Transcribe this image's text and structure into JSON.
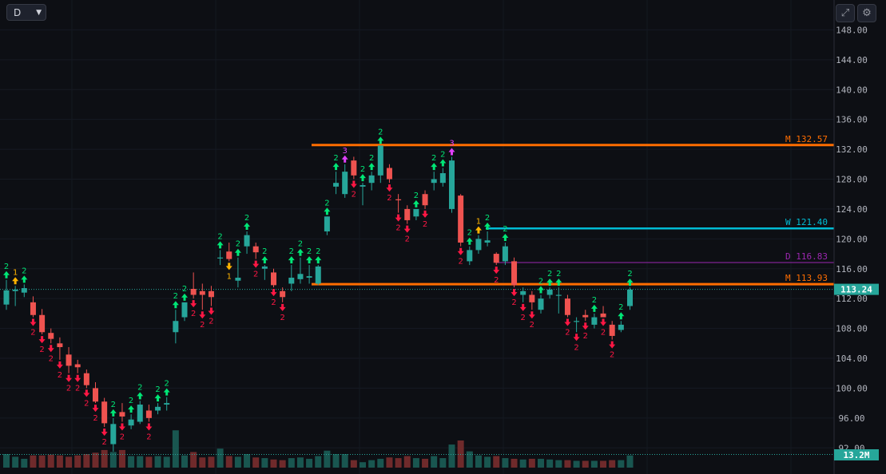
{
  "toolbar": {
    "timeframe": "D",
    "expand_icon": "expand-icon",
    "settings_icon": "gear-icon"
  },
  "colors": {
    "up": "#26a69a",
    "down": "#ef5350",
    "signal_green": "#00e676",
    "signal_red": "#ff1744",
    "signal_yellow": "#ffb300",
    "signal_magenta": "#e040fb",
    "monthly": "#ff6d00",
    "weekly": "#00bcd4",
    "daily": "#9c27b0"
  },
  "chart_data": {
    "type": "candlestick",
    "yaxis": {
      "ticks": [
        "148.00",
        "144.00",
        "140.00",
        "136.00",
        "132.00",
        "128.00",
        "124.00",
        "120.00",
        "116.00",
        "112.00",
        "108.00",
        "104.00",
        "100.00",
        "96.00",
        "92.00"
      ],
      "range": [
        88.5,
        152
      ]
    },
    "price_label": "113.24",
    "volume_label": "13.2M",
    "levels": [
      {
        "label": "M 132.57",
        "value": 132.57,
        "color": "#ff6d00"
      },
      {
        "label": "W 121.40",
        "value": 121.4,
        "color": "#00bcd4"
      },
      {
        "label": "D 116.83",
        "value": 116.83,
        "color": "#9c27b0"
      },
      {
        "label": "M 113.93",
        "value": 113.93,
        "color": "#ff6d00"
      }
    ],
    "candles": [
      {
        "o": 111.2,
        "h": 114.5,
        "l": 110.5,
        "c": 113.1,
        "v": 2.0,
        "s": "u",
        "n": "2"
      },
      {
        "o": 113.0,
        "h": 113.7,
        "l": 111.0,
        "c": 113.2,
        "v": 1.6,
        "s": "u",
        "n": "1"
      },
      {
        "o": 112.8,
        "h": 113.9,
        "l": 112.2,
        "c": 113.4,
        "v": 1.3,
        "s": "u",
        "n": "2"
      },
      {
        "o": 111.5,
        "h": 112.3,
        "l": 109.5,
        "c": 109.8,
        "v": 1.8,
        "s": "d",
        "n": "2"
      },
      {
        "o": 109.8,
        "h": 110.6,
        "l": 107.2,
        "c": 107.5,
        "v": 1.8,
        "s": "d",
        "n": "2"
      },
      {
        "o": 107.4,
        "h": 108.0,
        "l": 106.0,
        "c": 106.6,
        "v": 1.9,
        "s": "d",
        "n": "2"
      },
      {
        "o": 106.0,
        "h": 106.8,
        "l": 103.8,
        "c": 105.5,
        "v": 1.8,
        "s": "d",
        "n": "2"
      },
      {
        "o": 104.5,
        "h": 105.5,
        "l": 102.0,
        "c": 103.0,
        "v": 1.6,
        "s": "d",
        "n": "2"
      },
      {
        "o": 103.2,
        "h": 103.8,
        "l": 102.0,
        "c": 102.8,
        "v": 1.8,
        "s": "d",
        "n": "2"
      },
      {
        "o": 102.0,
        "h": 102.5,
        "l": 100.0,
        "c": 100.4,
        "v": 2.0,
        "s": "d",
        "n": "2"
      },
      {
        "o": 100.0,
        "h": 100.8,
        "l": 98.0,
        "c": 98.2,
        "v": 2.2,
        "s": "d",
        "n": "2"
      },
      {
        "o": 98.2,
        "h": 98.7,
        "l": 94.8,
        "c": 95.3,
        "v": 2.6,
        "s": "d",
        "n": "2"
      },
      {
        "o": 92.5,
        "h": 96.0,
        "l": 91.5,
        "c": 95.2,
        "v": 2.3,
        "s": "u",
        "n": "2"
      },
      {
        "o": 96.8,
        "h": 98.0,
        "l": 95.5,
        "c": 96.2,
        "v": 2.6,
        "s": "d",
        "n": "2"
      },
      {
        "o": 95.0,
        "h": 96.5,
        "l": 94.5,
        "c": 95.8,
        "v": 1.7,
        "s": "u",
        "n": "2"
      },
      {
        "o": 95.5,
        "h": 98.3,
        "l": 95.2,
        "c": 97.8,
        "v": 1.7,
        "s": "u",
        "n": "2"
      },
      {
        "o": 97.0,
        "h": 97.8,
        "l": 95.5,
        "c": 96.0,
        "v": 1.6,
        "s": "d",
        "n": "2"
      },
      {
        "o": 97.0,
        "h": 98.0,
        "l": 96.5,
        "c": 97.5,
        "v": 1.7,
        "s": "u",
        "n": "2"
      },
      {
        "o": 97.8,
        "h": 98.8,
        "l": 97.0,
        "c": 98.0,
        "v": 1.6,
        "s": "u",
        "n": "2"
      },
      {
        "o": 107.5,
        "h": 110.5,
        "l": 106.0,
        "c": 109.0,
        "v": 5.5,
        "s": "u",
        "n": "2"
      },
      {
        "o": 109.5,
        "h": 111.5,
        "l": 109.0,
        "c": 111.5,
        "v": 1.8,
        "s": "u",
        "n": "2"
      },
      {
        "o": 113.3,
        "h": 115.5,
        "l": 112.0,
        "c": 112.5,
        "v": 2.3,
        "s": "d",
        "n": "2"
      },
      {
        "o": 113.0,
        "h": 114.0,
        "l": 110.5,
        "c": 112.5,
        "v": 1.5,
        "s": "d",
        "n": "2"
      },
      {
        "o": 113.0,
        "h": 113.7,
        "l": 111.0,
        "c": 112.2,
        "v": 1.6,
        "s": "d",
        "n": "2"
      },
      {
        "o": 117.5,
        "h": 118.5,
        "l": 116.5,
        "c": 117.5,
        "v": 2.8,
        "s": "u",
        "n": "2"
      },
      {
        "o": 118.3,
        "h": 119.5,
        "l": 117.0,
        "c": 117.3,
        "v": 1.7,
        "s": "d",
        "n": "1"
      },
      {
        "o": 114.4,
        "h": 117.5,
        "l": 113.5,
        "c": 114.8,
        "v": 1.6,
        "s": "u",
        "n": "2"
      },
      {
        "o": 119.0,
        "h": 121.0,
        "l": 118.0,
        "c": 120.5,
        "v": 2.0,
        "s": "u",
        "n": "2"
      },
      {
        "o": 119.0,
        "h": 119.5,
        "l": 117.3,
        "c": 118.2,
        "v": 1.5,
        "s": "d",
        "n": "2"
      },
      {
        "o": 116.0,
        "h": 116.5,
        "l": 114.5,
        "c": 116.3,
        "v": 1.4,
        "s": "u",
        "n": "2"
      },
      {
        "o": 115.5,
        "h": 116.0,
        "l": 113.5,
        "c": 113.8,
        "v": 1.2,
        "s": "d",
        "n": "2"
      },
      {
        "o": 113.0,
        "h": 113.5,
        "l": 111.5,
        "c": 112.2,
        "v": 1.1,
        "s": "d",
        "n": "2"
      },
      {
        "o": 114.0,
        "h": 116.5,
        "l": 113.0,
        "c": 114.8,
        "v": 1.4,
        "s": "u",
        "n": "2"
      },
      {
        "o": 114.6,
        "h": 117.5,
        "l": 114.0,
        "c": 115.3,
        "v": 1.5,
        "s": "u",
        "n": "2"
      },
      {
        "o": 114.8,
        "h": 116.5,
        "l": 114.0,
        "c": 115.0,
        "v": 1.3,
        "s": "u",
        "n": "2"
      },
      {
        "o": 114.0,
        "h": 116.5,
        "l": 113.8,
        "c": 116.3,
        "v": 1.7,
        "s": "u",
        "n": "2"
      },
      {
        "o": 121.0,
        "h": 123.0,
        "l": 120.5,
        "c": 123.0,
        "v": 2.5,
        "s": "u",
        "n": "2"
      },
      {
        "o": 127.0,
        "h": 129.0,
        "l": 126.0,
        "c": 127.5,
        "v": 2.0,
        "s": "u",
        "n": "2"
      },
      {
        "o": 126.0,
        "h": 130.0,
        "l": 125.5,
        "c": 129.0,
        "v": 2.0,
        "s": "u",
        "n": "3"
      },
      {
        "o": 130.5,
        "h": 131.0,
        "l": 128.0,
        "c": 128.5,
        "v": 1.1,
        "s": "d",
        "n": "2"
      },
      {
        "o": 127.0,
        "h": 127.5,
        "l": 124.5,
        "c": 127.2,
        "v": 0.8,
        "s": "u",
        "n": "2"
      },
      {
        "o": 127.5,
        "h": 129.0,
        "l": 126.5,
        "c": 128.5,
        "v": 1.1,
        "s": "u",
        "n": "2"
      },
      {
        "o": 128.5,
        "h": 132.5,
        "l": 127.5,
        "c": 132.5,
        "v": 1.3,
        "s": "u",
        "n": "2"
      },
      {
        "o": 129.5,
        "h": 130.0,
        "l": 127.5,
        "c": 128.0,
        "v": 1.5,
        "s": "d",
        "n": "2"
      },
      {
        "o": 125.3,
        "h": 126.0,
        "l": 123.5,
        "c": 125.2,
        "v": 1.4,
        "s": "d",
        "n": "2"
      },
      {
        "o": 124.0,
        "h": 124.5,
        "l": 122.0,
        "c": 122.5,
        "v": 1.7,
        "s": "d",
        "n": "2"
      },
      {
        "o": 123.0,
        "h": 124.0,
        "l": 122.5,
        "c": 124.0,
        "v": 1.4,
        "s": "u",
        "n": "2"
      },
      {
        "o": 126.0,
        "h": 126.5,
        "l": 124.0,
        "c": 124.5,
        "v": 1.3,
        "s": "d",
        "n": "2"
      },
      {
        "o": 127.5,
        "h": 129.0,
        "l": 126.5,
        "c": 128.0,
        "v": 1.7,
        "s": "u",
        "n": "2"
      },
      {
        "o": 127.5,
        "h": 129.5,
        "l": 127.0,
        "c": 128.8,
        "v": 1.4,
        "s": "u",
        "n": "2"
      },
      {
        "o": 124.0,
        "h": 131.0,
        "l": 123.5,
        "c": 130.5,
        "v": 3.4,
        "s": "u",
        "n": "3"
      },
      {
        "o": 125.8,
        "h": 126.0,
        "l": 119.0,
        "c": 119.5,
        "v": 4.0,
        "s": "d",
        "n": "2"
      },
      {
        "o": 117.0,
        "h": 119.0,
        "l": 116.5,
        "c": 118.5,
        "v": 2.4,
        "s": "u",
        "n": "2"
      },
      {
        "o": 118.5,
        "h": 120.5,
        "l": 118.0,
        "c": 120.0,
        "v": 1.8,
        "s": "u",
        "n": "1"
      },
      {
        "o": 119.5,
        "h": 121.0,
        "l": 119.0,
        "c": 119.8,
        "v": 1.6,
        "s": "u",
        "n": "2"
      },
      {
        "o": 118.0,
        "h": 118.2,
        "l": 116.5,
        "c": 116.8,
        "v": 1.7,
        "s": "d",
        "n": "2"
      },
      {
        "o": 117.0,
        "h": 119.5,
        "l": 116.5,
        "c": 119.0,
        "v": 1.4,
        "s": "u",
        "n": "2"
      },
      {
        "o": 117.0,
        "h": 117.5,
        "l": 113.5,
        "c": 113.8,
        "v": 1.3,
        "s": "d",
        "n": "2"
      },
      {
        "o": 112.5,
        "h": 113.5,
        "l": 111.5,
        "c": 113.0,
        "v": 1.2,
        "s": "d",
        "n": "2"
      },
      {
        "o": 112.5,
        "h": 113.0,
        "l": 110.5,
        "c": 111.5,
        "v": 1.3,
        "s": "d",
        "n": "2"
      },
      {
        "o": 110.5,
        "h": 112.5,
        "l": 110.0,
        "c": 112.0,
        "v": 1.3,
        "s": "u",
        "n": "2"
      },
      {
        "o": 112.5,
        "h": 113.5,
        "l": 112.0,
        "c": 113.2,
        "v": 1.2,
        "s": "u",
        "n": "2"
      },
      {
        "o": 112.5,
        "h": 113.5,
        "l": 110.0,
        "c": 112.5,
        "v": 1.1,
        "s": "u",
        "n": "2"
      },
      {
        "o": 112.0,
        "h": 112.5,
        "l": 109.5,
        "c": 109.8,
        "v": 1.1,
        "s": "d",
        "n": "2"
      },
      {
        "o": 109.0,
        "h": 109.5,
        "l": 107.5,
        "c": 109.0,
        "v": 1.0,
        "s": "d",
        "n": "2"
      },
      {
        "o": 109.8,
        "h": 110.5,
        "l": 109.0,
        "c": 109.5,
        "v": 1.0,
        "s": "d",
        "n": "2"
      },
      {
        "o": 108.5,
        "h": 110.0,
        "l": 108.0,
        "c": 109.5,
        "v": 1.0,
        "s": "u",
        "n": "2"
      },
      {
        "o": 110.0,
        "h": 111.0,
        "l": 109.5,
        "c": 109.5,
        "v": 1.0,
        "s": "d",
        "n": "2"
      },
      {
        "o": 108.5,
        "h": 109.0,
        "l": 106.5,
        "c": 107.0,
        "v": 1.1,
        "s": "d",
        "n": "2"
      },
      {
        "o": 107.8,
        "h": 109.0,
        "l": 107.5,
        "c": 108.5,
        "v": 1.1,
        "s": "u",
        "n": "2"
      },
      {
        "o": 111.0,
        "h": 113.5,
        "l": 110.5,
        "c": 113.2,
        "v": 1.8,
        "s": "u",
        "n": "2"
      }
    ]
  }
}
